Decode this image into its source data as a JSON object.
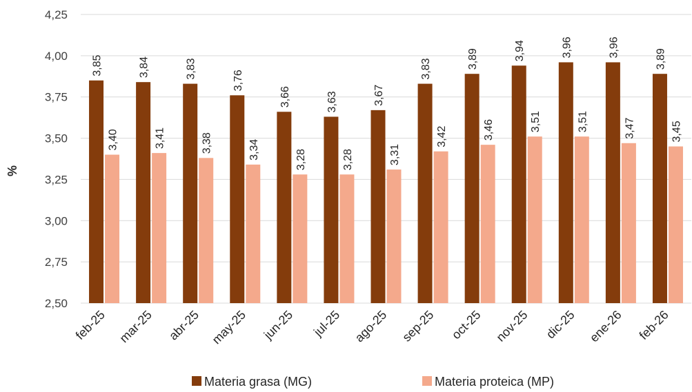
{
  "chart_data": {
    "type": "bar",
    "ylabel": "%",
    "ylim": [
      2.5,
      4.25
    ],
    "yticks": [
      "2,50",
      "2,75",
      "3,00",
      "3,25",
      "3,50",
      "3,75",
      "4,00",
      "4,25"
    ],
    "categories": [
      "feb-25",
      "mar-25",
      "abr-25",
      "may-25",
      "jun-25",
      "jul-25",
      "ago-25",
      "sep-25",
      "oct-25",
      "nov-25",
      "dic-25",
      "ene-26",
      "feb-26"
    ],
    "series": [
      {
        "name": "Materia grasa (MG)",
        "color": "#843C0C",
        "values": [
          3.85,
          3.84,
          3.83,
          3.76,
          3.66,
          3.63,
          3.67,
          3.83,
          3.89,
          3.94,
          3.96,
          3.96,
          3.89
        ],
        "labels": [
          "3,85",
          "3,84",
          "3,83",
          "3,76",
          "3,66",
          "3,63",
          "3,67",
          "3,83",
          "3,89",
          "3,94",
          "3,96",
          "3,96",
          "3,89"
        ]
      },
      {
        "name": "Materia proteica (MP)",
        "color": "#F4A98C",
        "values": [
          3.4,
          3.41,
          3.38,
          3.34,
          3.28,
          3.28,
          3.31,
          3.42,
          3.46,
          3.51,
          3.51,
          3.47,
          3.45
        ],
        "labels": [
          "3,40",
          "3,41",
          "3,38",
          "3,34",
          "3,28",
          "3,28",
          "3,31",
          "3,42",
          "3,46",
          "3,51",
          "3,51",
          "3,47",
          "3,45"
        ]
      }
    ],
    "gridlines": true,
    "legend_position": "bottom"
  }
}
